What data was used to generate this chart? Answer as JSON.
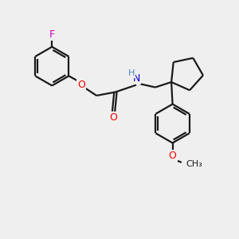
{
  "bg_color": "#efefef",
  "bond_color": "#1a1a1a",
  "F_color": "#cc00cc",
  "O_color": "#ff0000",
  "N_color": "#0000cc",
  "H_color": "#4488bb",
  "line_width": 1.6,
  "fig_size": [
    3.0,
    3.0
  ],
  "dpi": 100,
  "xlim": [
    0,
    10
  ],
  "ylim": [
    0,
    10
  ]
}
